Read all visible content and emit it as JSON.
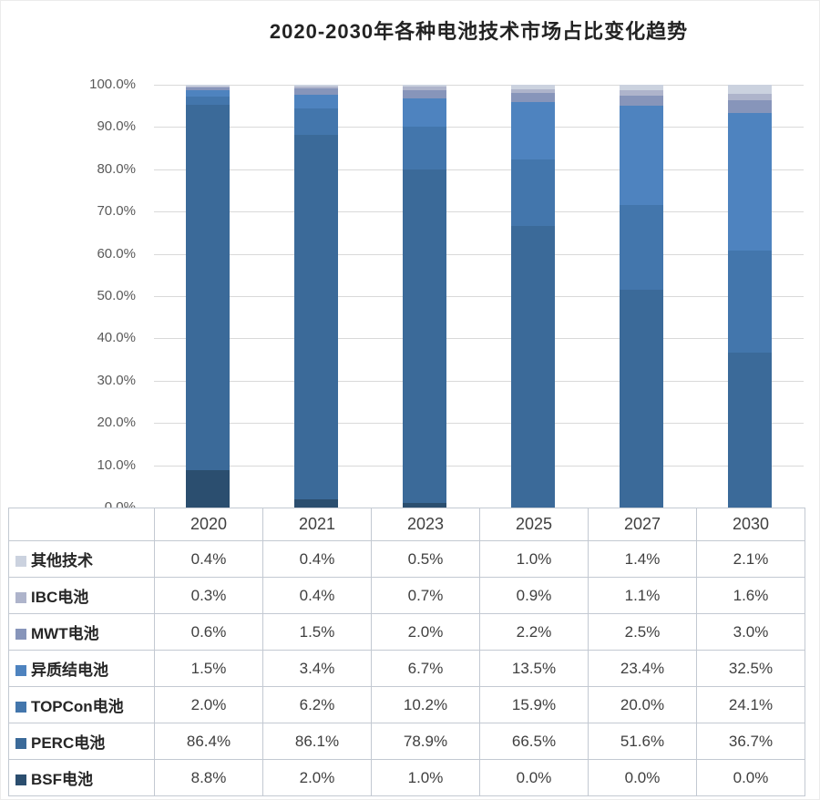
{
  "chart_data": {
    "type": "bar",
    "stacked": true,
    "title": "2020-2030年各种电池技术市场占比变化趋势",
    "xlabel": "",
    "ylabel": "",
    "ylim": [
      0,
      100
    ],
    "ytick_step": 10,
    "ytick_suffix": "%",
    "grid": true,
    "gridline_color": "#d9d9d9",
    "legend_position": "table-left-column",
    "categories": [
      "2020",
      "2021",
      "2023",
      "2025",
      "2027",
      "2030"
    ],
    "series": [
      {
        "key": "other-tech",
        "name": "其他技术",
        "color": "#cbd2df",
        "values": [
          0.4,
          0.4,
          0.5,
          1.0,
          1.4,
          2.1
        ]
      },
      {
        "key": "ibc",
        "name": "IBC电池",
        "color": "#aeb4cb",
        "values": [
          0.3,
          0.4,
          0.7,
          0.9,
          1.1,
          1.6
        ]
      },
      {
        "key": "mwt",
        "name": "MWT电池",
        "color": "#8795ba",
        "values": [
          0.6,
          1.5,
          2.0,
          2.2,
          2.5,
          3.0
        ]
      },
      {
        "key": "hjt",
        "name": "异质结电池",
        "color": "#4e83bf",
        "values": [
          1.5,
          3.4,
          6.7,
          13.5,
          23.4,
          32.5
        ]
      },
      {
        "key": "topcon",
        "name": "TOPCon电池",
        "color": "#4376ac",
        "values": [
          2.0,
          6.2,
          10.2,
          15.9,
          20.0,
          24.1
        ]
      },
      {
        "key": "perc",
        "name": "PERC电池",
        "color": "#3b6a99",
        "values": [
          86.4,
          86.1,
          78.9,
          66.5,
          51.6,
          36.7
        ]
      },
      {
        "key": "bsf",
        "name": "BSF电池",
        "color": "#2b4e6f",
        "values": [
          8.8,
          2.0,
          1.0,
          0.0,
          0.0,
          0.0
        ]
      }
    ],
    "value_format": "one_decimal_percent"
  }
}
